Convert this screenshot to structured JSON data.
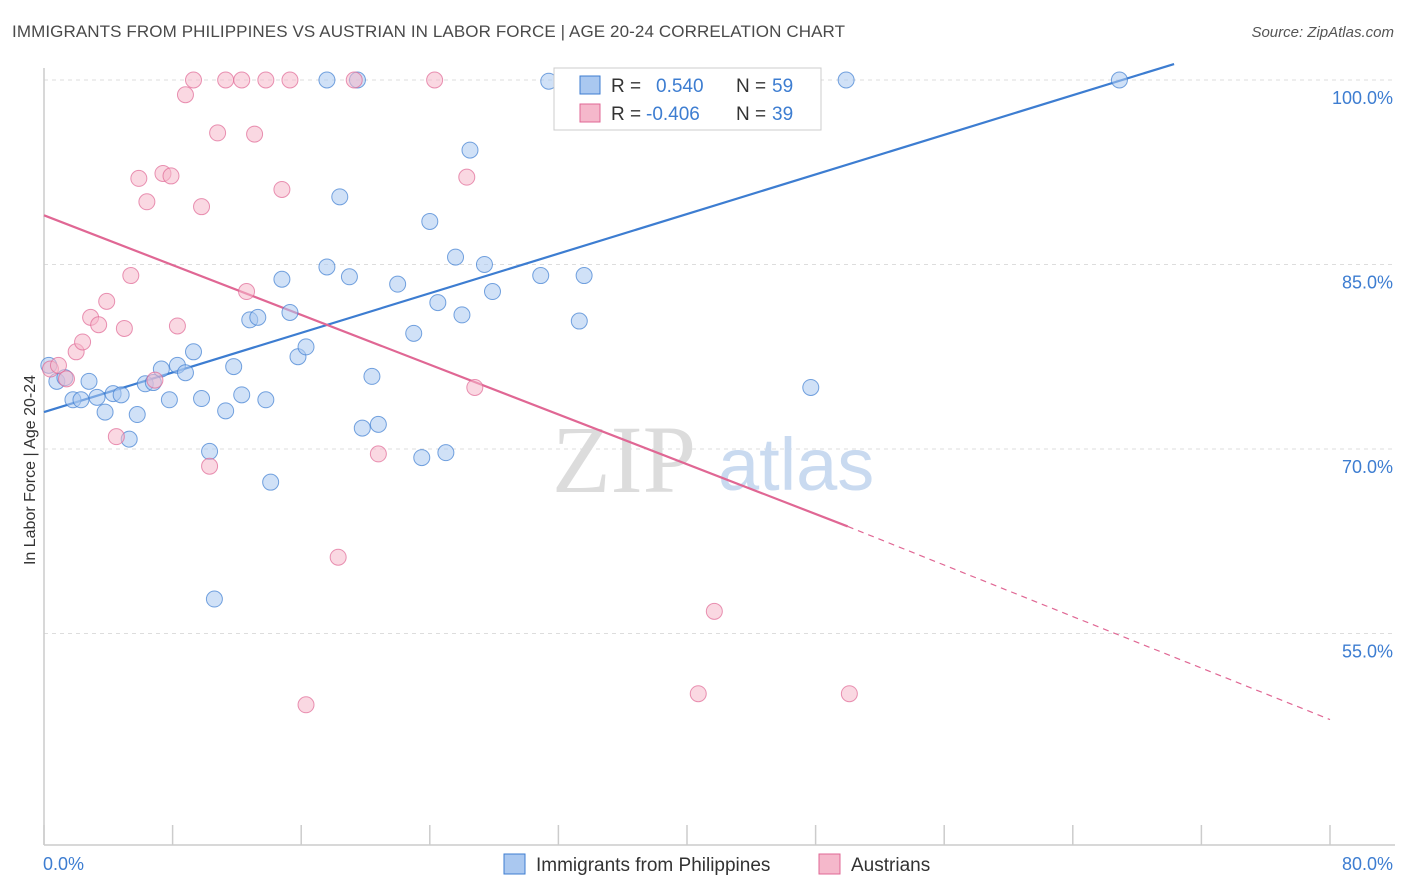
{
  "title": "IMMIGRANTS FROM PHILIPPINES VS AUSTRIAN IN LABOR FORCE | AGE 20-24 CORRELATION CHART",
  "source": "Source: ZipAtlas.com",
  "watermark": {
    "zip": "ZIP",
    "atlas": "atlas"
  },
  "colors": {
    "blue": "#3d7dd1",
    "blue_fill": "#aac8f0",
    "pink": "#e06794",
    "pink_fill": "#f5b8cb",
    "grid": "#dddddd"
  },
  "legend": {
    "r_label": "R =",
    "n_label": "N =",
    "rows": [
      {
        "r": "0.540",
        "n": "59",
        "series": "blue"
      },
      {
        "r": "-0.406",
        "n": "39",
        "series": "pink"
      }
    ]
  },
  "bottom_legend": [
    {
      "label": "Immigrants from Philippines",
      "series": "blue"
    },
    {
      "label": "Austrians",
      "series": "pink"
    }
  ],
  "chart_data": {
    "type": "scatter",
    "title": "IMMIGRANTS FROM PHILIPPINES VS AUSTRIAN IN LABOR FORCE | AGE 20-24 CORRELATION CHART",
    "xlabel": "",
    "ylabel": "In Labor Force | Age 20-24",
    "xlim": [
      0,
      80
    ],
    "ylim": [
      37.8,
      100
    ],
    "x_tick_labels": [
      {
        "value": 0,
        "label": "0.0%"
      },
      {
        "value": 80,
        "label": "80.0%"
      }
    ],
    "y_tick_labels": [
      {
        "value": 100,
        "label": "100.0%"
      },
      {
        "value": 85,
        "label": "85.0%"
      },
      {
        "value": 70,
        "label": "70.0%"
      },
      {
        "value": 55,
        "label": "55.0%"
      }
    ],
    "x_minor_ticks": [
      0,
      8,
      16,
      24,
      32,
      40,
      48,
      56,
      64,
      72,
      80
    ],
    "grid": true,
    "legend_position": "top-center",
    "series": [
      {
        "name": "Immigrants from Philippines",
        "color": "blue",
        "trend": {
          "x0": 0,
          "y0": 73.0,
          "x1": 70.3,
          "y1": 101.3
        },
        "points": [
          [
            0.3,
            76.8
          ],
          [
            0.8,
            75.5
          ],
          [
            1.3,
            75.8
          ],
          [
            1.8,
            74.0
          ],
          [
            2.3,
            74.0
          ],
          [
            2.8,
            75.5
          ],
          [
            3.3,
            74.2
          ],
          [
            3.8,
            73.0
          ],
          [
            4.3,
            74.5
          ],
          [
            4.8,
            74.4
          ],
          [
            5.3,
            70.8
          ],
          [
            5.8,
            72.8
          ],
          [
            6.3,
            75.3
          ],
          [
            6.8,
            75.4
          ],
          [
            7.3,
            76.5
          ],
          [
            7.8,
            74.0
          ],
          [
            8.3,
            76.8
          ],
          [
            8.8,
            76.2
          ],
          [
            9.3,
            77.9
          ],
          [
            9.8,
            74.1
          ],
          [
            10.3,
            69.8
          ],
          [
            10.6,
            57.8
          ],
          [
            11.3,
            73.1
          ],
          [
            11.8,
            76.7
          ],
          [
            12.3,
            74.4
          ],
          [
            12.8,
            80.5
          ],
          [
            13.3,
            80.7
          ],
          [
            13.8,
            74.0
          ],
          [
            14.1,
            67.3
          ],
          [
            14.8,
            83.8
          ],
          [
            15.3,
            81.1
          ],
          [
            15.8,
            77.5
          ],
          [
            16.3,
            78.3
          ],
          [
            17.6,
            84.8
          ],
          [
            18.4,
            90.5
          ],
          [
            19.0,
            84.0
          ],
          [
            19.8,
            71.7
          ],
          [
            20.4,
            75.9
          ],
          [
            20.8,
            72.0
          ],
          [
            22.0,
            83.4
          ],
          [
            23.0,
            79.4
          ],
          [
            23.5,
            69.3
          ],
          [
            24.0,
            88.5
          ],
          [
            24.5,
            81.9
          ],
          [
            25.0,
            69.7
          ],
          [
            25.6,
            85.6
          ],
          [
            26.0,
            80.9
          ],
          [
            26.5,
            94.3
          ],
          [
            27.4,
            85.0
          ],
          [
            27.9,
            82.8
          ],
          [
            30.9,
            84.1
          ],
          [
            31.4,
            99.9
          ],
          [
            33.3,
            80.4
          ],
          [
            33.6,
            84.1
          ],
          [
            47.7,
            75.0
          ],
          [
            49.9,
            100.0
          ],
          [
            66.9,
            100.0
          ],
          [
            17.6,
            100.0
          ],
          [
            19.5,
            100.0
          ]
        ]
      },
      {
        "name": "Austrians",
        "color": "pink",
        "trend": {
          "x0": 0,
          "y0": 89.0,
          "x1": 50.0,
          "y1": 63.7
        },
        "trend_dashed": {
          "x0": 50.0,
          "y0": 63.7,
          "x1": 80.0,
          "y1": 48.0
        },
        "points": [
          [
            0.4,
            76.5
          ],
          [
            0.9,
            76.8
          ],
          [
            1.4,
            75.7
          ],
          [
            2.0,
            77.9
          ],
          [
            2.4,
            78.7
          ],
          [
            2.9,
            80.7
          ],
          [
            3.4,
            80.1
          ],
          [
            3.9,
            82.0
          ],
          [
            4.5,
            71.0
          ],
          [
            5.0,
            79.8
          ],
          [
            5.4,
            84.1
          ],
          [
            5.9,
            92.0
          ],
          [
            6.4,
            90.1
          ],
          [
            6.9,
            75.6
          ],
          [
            7.4,
            92.4
          ],
          [
            7.9,
            92.2
          ],
          [
            8.3,
            80.0
          ],
          [
            8.8,
            98.8
          ],
          [
            9.3,
            100.0
          ],
          [
            9.8,
            89.7
          ],
          [
            10.3,
            68.6
          ],
          [
            10.8,
            95.7
          ],
          [
            11.3,
            100.0
          ],
          [
            12.3,
            100.0
          ],
          [
            12.6,
            82.8
          ],
          [
            13.1,
            95.6
          ],
          [
            13.8,
            100.0
          ],
          [
            14.8,
            91.1
          ],
          [
            15.3,
            100.0
          ],
          [
            16.3,
            49.2
          ],
          [
            18.3,
            61.2
          ],
          [
            19.3,
            100.0
          ],
          [
            20.8,
            69.6
          ],
          [
            24.3,
            100.0
          ],
          [
            26.3,
            92.1
          ],
          [
            26.8,
            75.0
          ],
          [
            40.7,
            50.1
          ],
          [
            41.7,
            56.8
          ],
          [
            50.1,
            50.1
          ]
        ]
      }
    ]
  }
}
